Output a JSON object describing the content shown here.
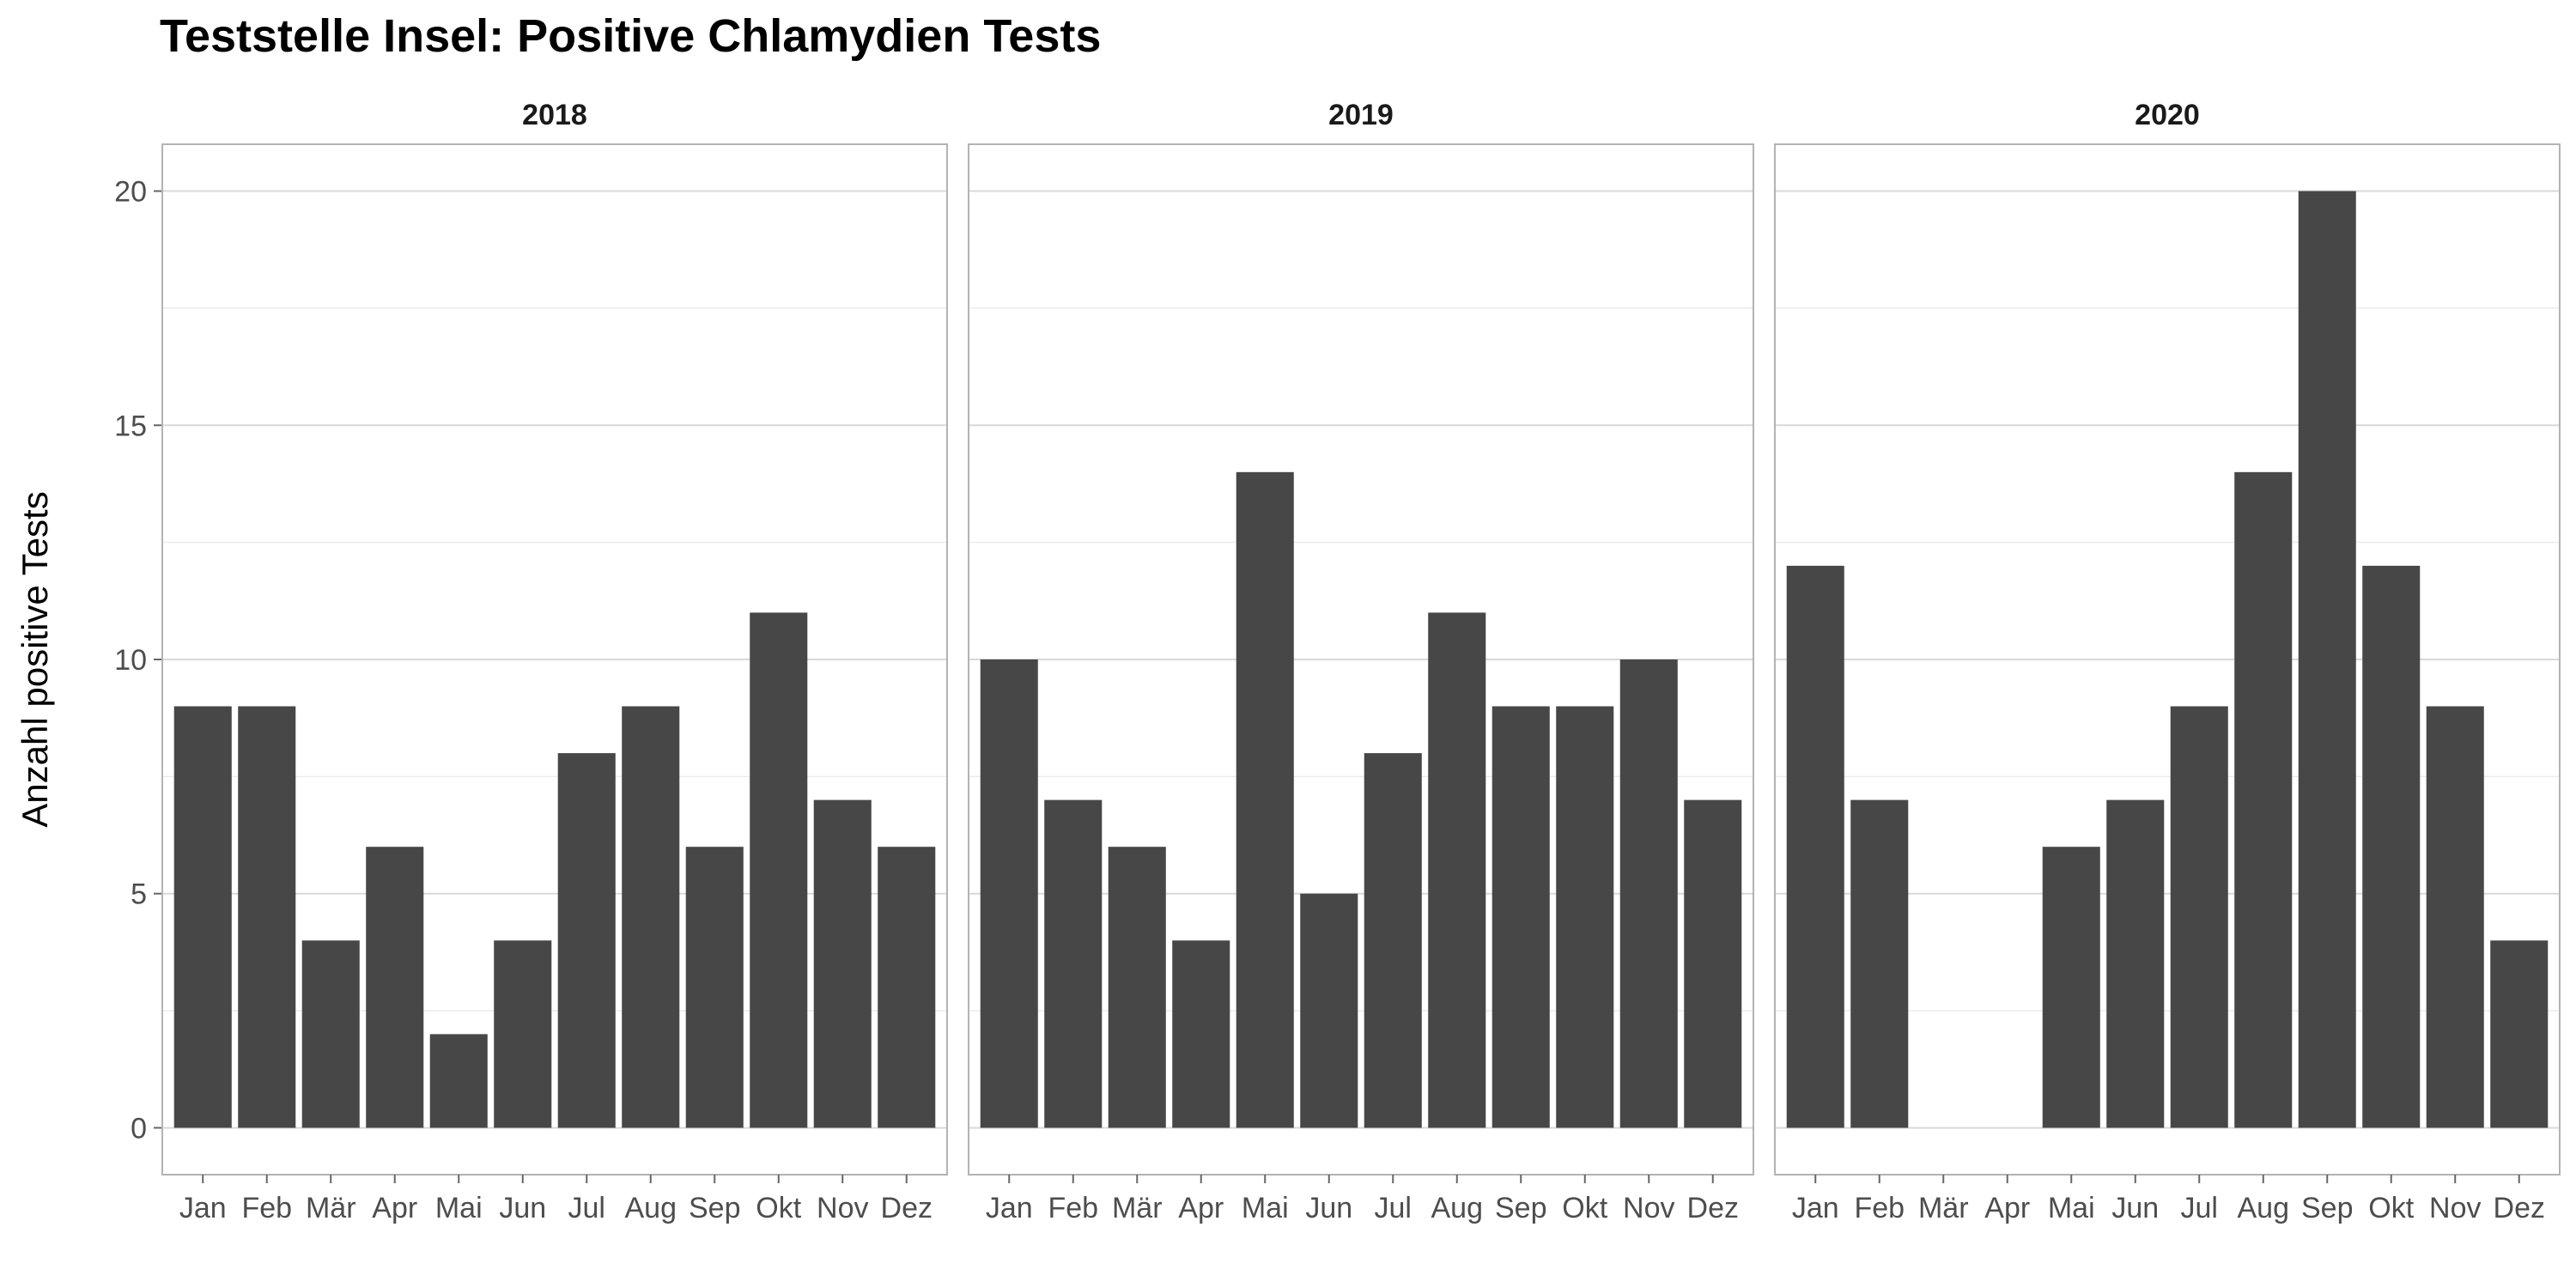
{
  "chart_data": {
    "type": "bar",
    "title": "Teststelle Insel: Positive Chlamydien Tests",
    "ylabel": "Anzahl positive Tests",
    "xlabel": "",
    "ylim": [
      -1,
      21
    ],
    "yticks": [
      0,
      5,
      10,
      15,
      20
    ],
    "grid": true,
    "bar_color": "#474747",
    "categories": [
      "Jan",
      "Feb",
      "Mär",
      "Apr",
      "Mai",
      "Jun",
      "Jul",
      "Aug",
      "Sep",
      "Okt",
      "Nov",
      "Dez"
    ],
    "facets": [
      {
        "label": "2018",
        "values": [
          9,
          9,
          4,
          6,
          2,
          4,
          8,
          9,
          6,
          11,
          7,
          6
        ]
      },
      {
        "label": "2019",
        "values": [
          10,
          7,
          6,
          4,
          14,
          5,
          8,
          11,
          9,
          9,
          10,
          7
        ]
      },
      {
        "label": "2020",
        "values": [
          12,
          7,
          0,
          0,
          6,
          7,
          9,
          14,
          20,
          12,
          9,
          4
        ]
      }
    ]
  }
}
